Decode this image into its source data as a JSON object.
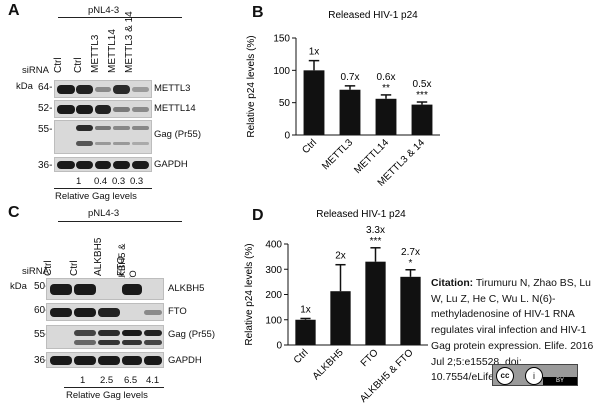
{
  "panels": {
    "A": {
      "letter": "A",
      "group": "pNL4-3",
      "sirna_label": "siRNA",
      "kda_label": "kDa",
      "lanes": [
        "Ctrl",
        "Ctrl",
        "METTL3",
        "METTL14",
        "METTL3 & 14"
      ],
      "markers": [
        "64-",
        "52-",
        "55-",
        "36-"
      ],
      "blots": [
        "METTL3",
        "METTL14",
        "Gag (Pr55)",
        "GAPDH"
      ],
      "quant_values": [
        "1",
        "0.4",
        "0.3",
        "0.3"
      ],
      "quant_caption": "Relative Gag levels"
    },
    "C": {
      "letter": "C",
      "group": "pNL4-3",
      "sirna_label": "siRNA",
      "kda_label": "kDa",
      "lanes": [
        "Ctrl",
        "Ctrl",
        "ALKBH5",
        "FTO",
        "ALKBH5 & FTO"
      ],
      "markers": [
        "50-",
        "60-",
        "55-",
        "36-"
      ],
      "blots": [
        "ALKBH5",
        "FTO",
        "Gag (Pr55)",
        "GAPDH"
      ],
      "quant_values": [
        "1",
        "2.5",
        "6.5",
        "4.1"
      ],
      "quant_caption": "Relative Gag levels"
    },
    "B_letter": "B",
    "D_letter": "D"
  },
  "chart_data": [
    {
      "type": "bar",
      "title": "Released HIV-1 p24",
      "ylabel": "Relative p24 levels (%)",
      "categories": [
        "Ctrl",
        "METTL3",
        "METTL14",
        "METTL3 & 14"
      ],
      "values": [
        100,
        70,
        56,
        47
      ],
      "errors": [
        15,
        6,
        6,
        4
      ],
      "annotations": [
        "1x",
        "0.7x",
        "0.6x",
        "0.5x"
      ],
      "significance": [
        "",
        "",
        "**",
        "***"
      ],
      "ylim": [
        0,
        150
      ],
      "yticks": [
        "0",
        "50",
        "100",
        "150"
      ],
      "bar_color": "#111111"
    },
    {
      "type": "bar",
      "title": "Released HIV-1 p24",
      "ylabel": "Relative p24 levels (%)",
      "categories": [
        "Ctrl",
        "ALKBH5",
        "FTO",
        "ALKBH5 & FTO"
      ],
      "values": [
        100,
        213,
        330,
        270
      ],
      "errors": [
        5,
        105,
        55,
        28
      ],
      "annotations": [
        "1x",
        "2x",
        "3.3x",
        "2.7x"
      ],
      "significance": [
        "",
        "",
        "***",
        "*"
      ],
      "ylim": [
        0,
        400
      ],
      "yticks": [
        "0",
        "100",
        "200",
        "300",
        "400"
      ],
      "bar_color": "#111111"
    }
  ],
  "citation": {
    "label": "Citation:",
    "text": "Tirumuru N, Zhao BS, Lu W, Lu Z, He C, Wu L. N(6)-methyladenosine of HIV-1 RNA regulates viral infection and HIV-1 Gag protein expression. Elife. 2016 Jul 2;5:e15528. doi: 10.7554/eLife.15528."
  },
  "license": {
    "cc": "cc",
    "by_symbol": "i",
    "by": "BY"
  },
  "icons": [
    "cc-license-icon",
    "attribution-icon"
  ]
}
